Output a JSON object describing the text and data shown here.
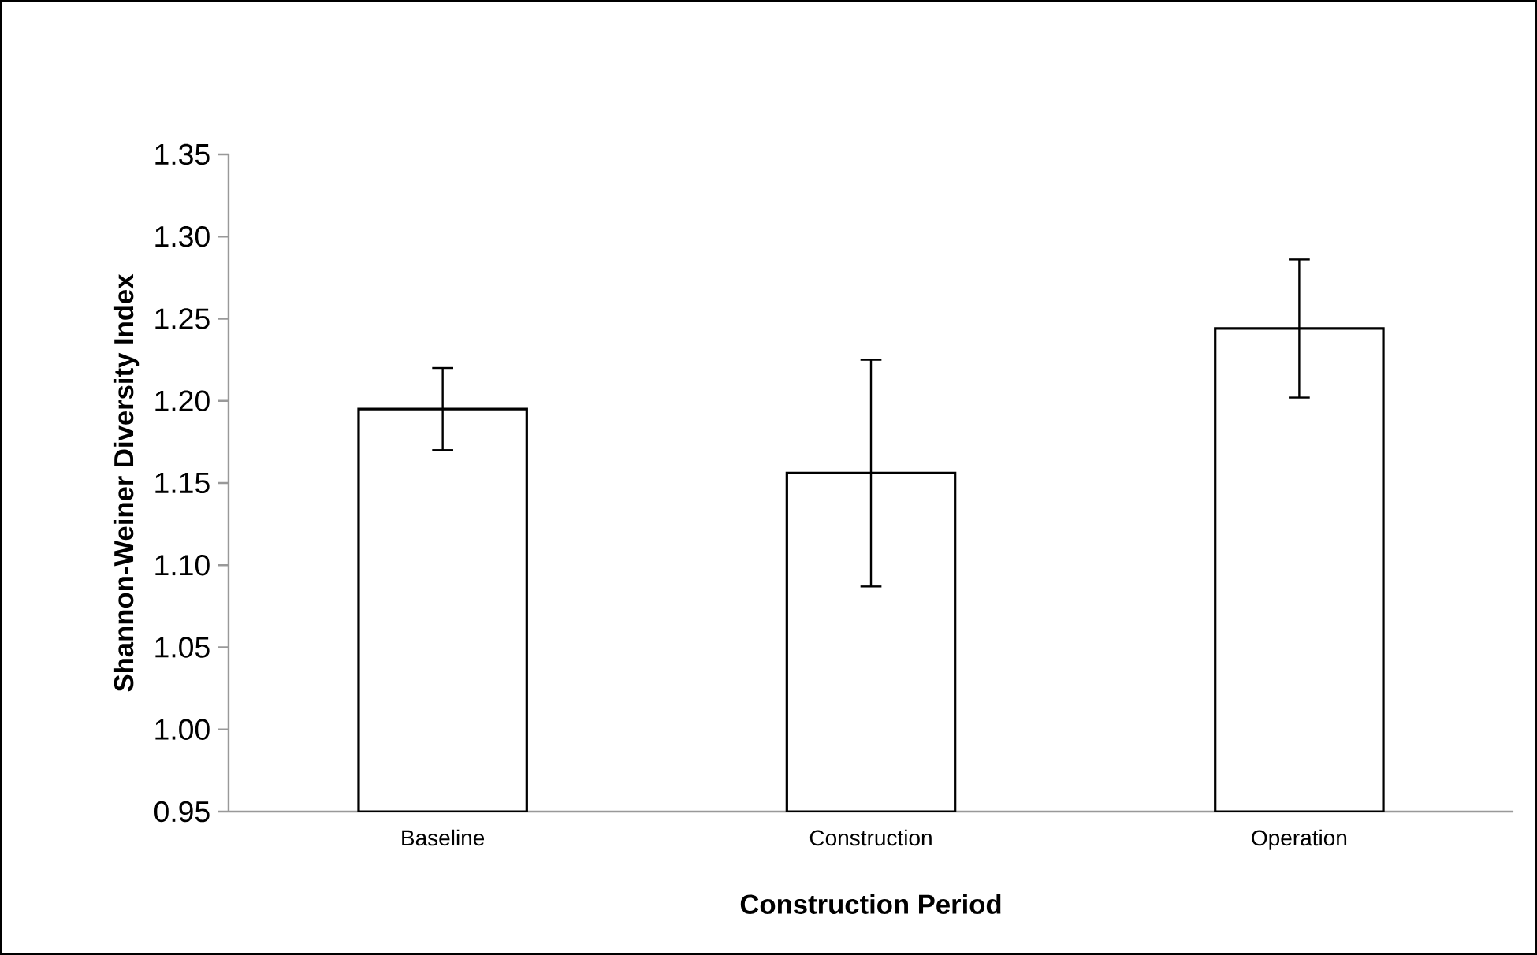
{
  "chart_data": {
    "type": "bar",
    "xlabel": "Construction Period",
    "ylabel": "Shannon-Weiner Diversity Index",
    "categories": [
      "Baseline",
      "Construction",
      "Operation"
    ],
    "values": [
      1.195,
      1.156,
      1.244
    ],
    "errors": [
      0.025,
      0.069,
      0.042
    ],
    "color": "#ffffff",
    "ylim": [
      0.95,
      1.35
    ],
    "yticks": [
      {
        "value": 0.95,
        "label": "0.95"
      },
      {
        "value": 1.0,
        "label": "1.00"
      },
      {
        "value": 1.05,
        "label": "1.05"
      },
      {
        "value": 1.1,
        "label": "1.10"
      },
      {
        "value": 1.15,
        "label": "1.15"
      },
      {
        "value": 1.2,
        "label": "1.20"
      },
      {
        "value": 1.25,
        "label": "1.25"
      },
      {
        "value": 1.3,
        "label": "1.30"
      },
      {
        "value": 1.35,
        "label": "1.35"
      }
    ],
    "grid": false
  }
}
